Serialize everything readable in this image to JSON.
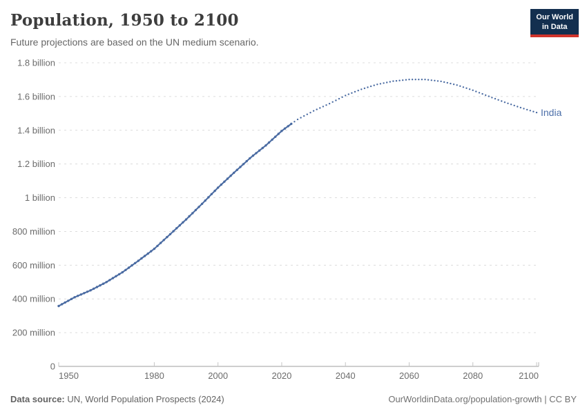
{
  "header": {
    "title": "Population, 1950 to 2100",
    "subtitle": "Future projections are based on the UN medium scenario."
  },
  "logo": {
    "line1": "Our World",
    "line2": "in Data",
    "bg_color": "#132F4F",
    "accent_color": "#D0342C"
  },
  "chart_data": {
    "type": "line",
    "title": "Population, 1950 to 2100",
    "subtitle": "Future projections are based on the UN medium scenario.",
    "entity": "India",
    "unit": "people",
    "grid": "dashed horizontal",
    "legend_position": "end-of-line label",
    "x": {
      "label": "",
      "range": [
        1950,
        2100
      ],
      "ticks": [
        1950,
        1980,
        2000,
        2020,
        2040,
        2060,
        2080,
        2100
      ]
    },
    "y": {
      "label": "",
      "range": [
        0,
        1.8
      ],
      "unit": "billion",
      "ticks": [
        {
          "value": 0,
          "label": "0"
        },
        {
          "value": 0.2,
          "label": "200 million"
        },
        {
          "value": 0.4,
          "label": "400 million"
        },
        {
          "value": 0.6,
          "label": "600 million"
        },
        {
          "value": 0.8,
          "label": "800 million"
        },
        {
          "value": 1.0,
          "label": "1 billion"
        },
        {
          "value": 1.2,
          "label": "1.2 billion"
        },
        {
          "value": 1.4,
          "label": "1.4 billion"
        },
        {
          "value": 1.6,
          "label": "1.6 billion"
        },
        {
          "value": 1.8,
          "label": "1.8 billion"
        }
      ]
    },
    "series": [
      {
        "name": "India",
        "color": "#4A6BA2",
        "label_color": "#4C6FA9",
        "style_historical": "solid line with yearly point markers",
        "style_projection": "dotted",
        "historical": [
          [
            1950,
            0.358
          ],
          [
            1955,
            0.41
          ],
          [
            1960,
            0.451
          ],
          [
            1965,
            0.5
          ],
          [
            1970,
            0.558
          ],
          [
            1975,
            0.626
          ],
          [
            1980,
            0.697
          ],
          [
            1985,
            0.784
          ],
          [
            1990,
            0.871
          ],
          [
            1995,
            0.964
          ],
          [
            2000,
            1.06
          ],
          [
            2005,
            1.148
          ],
          [
            2010,
            1.234
          ],
          [
            2015,
            1.31
          ],
          [
            2020,
            1.396
          ],
          [
            2023,
            1.438
          ]
        ],
        "projection": [
          [
            2023,
            1.438
          ],
          [
            2025,
            1.464
          ],
          [
            2030,
            1.515
          ],
          [
            2035,
            1.558
          ],
          [
            2040,
            1.606
          ],
          [
            2045,
            1.643
          ],
          [
            2050,
            1.672
          ],
          [
            2055,
            1.691
          ],
          [
            2060,
            1.701
          ],
          [
            2065,
            1.701
          ],
          [
            2070,
            1.69
          ],
          [
            2075,
            1.668
          ],
          [
            2080,
            1.637
          ],
          [
            2085,
            1.601
          ],
          [
            2090,
            1.566
          ],
          [
            2095,
            1.534
          ],
          [
            2100,
            1.505
          ]
        ]
      }
    ]
  },
  "footer": {
    "source_label": "Data source:",
    "source_text": " UN, World Population Prospects (2024)",
    "right_text": "OurWorldinData.org/population-growth | CC BY"
  }
}
